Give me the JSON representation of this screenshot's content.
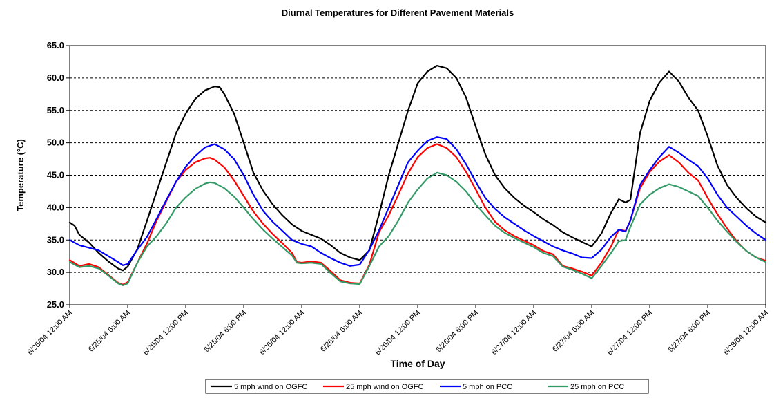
{
  "chart_data": {
    "type": "line",
    "title": "Diurnal Temperatures for Different Pavement Materials",
    "xlabel": "Time of Day",
    "ylabel": "Temperature (°C)",
    "ylim": [
      25,
      65
    ],
    "yticks": [
      "25.0",
      "30.0",
      "35.0",
      "40.0",
      "45.0",
      "50.0",
      "55.0",
      "60.0",
      "65.0"
    ],
    "xlim": [
      0,
      72
    ],
    "x_unit": "hours since 6/25/04 12:00 AM",
    "xticks": [
      {
        "x": 0,
        "label": "6/25/04 12:00 AM"
      },
      {
        "x": 6,
        "label": "6/25/04 6:00 AM"
      },
      {
        "x": 12,
        "label": "6/25/04 12:00 PM"
      },
      {
        "x": 18,
        "label": "6/25/04 6:00 PM"
      },
      {
        "x": 24,
        "label": "6/26/04 12:00 AM"
      },
      {
        "x": 30,
        "label": "6/26/04 6:00 AM"
      },
      {
        "x": 36,
        "label": "6/26/04 12:00 PM"
      },
      {
        "x": 42,
        "label": "6/26/04 6:00 PM"
      },
      {
        "x": 48,
        "label": "6/27/04 12:00 AM"
      },
      {
        "x": 54,
        "label": "6/27/04 6:00 AM"
      },
      {
        "x": 60,
        "label": "6/27/04 12:00 PM"
      },
      {
        "x": 66,
        "label": "6/27/04 6:00 PM"
      },
      {
        "x": 72,
        "label": "6/28/04 12:00 AM"
      }
    ],
    "grid": {
      "horizontal": true,
      "style": "dashed"
    },
    "legend_position": "bottom",
    "series": [
      {
        "name": "5 mph wind on OGFC",
        "color": "#000000",
        "points": [
          [
            0,
            37.7
          ],
          [
            0.5,
            37.2
          ],
          [
            1,
            35.8
          ],
          [
            2,
            34.6
          ],
          [
            3,
            33.0
          ],
          [
            4,
            31.7
          ],
          [
            5,
            30.6
          ],
          [
            5.5,
            30.3
          ],
          [
            6,
            30.9
          ],
          [
            7,
            33.6
          ],
          [
            8,
            38.0
          ],
          [
            9,
            42.5
          ],
          [
            10,
            47.0
          ],
          [
            11,
            51.5
          ],
          [
            12,
            54.5
          ],
          [
            13,
            56.8
          ],
          [
            14,
            58.1
          ],
          [
            15,
            58.7
          ],
          [
            15.5,
            58.6
          ],
          [
            16,
            57.5
          ],
          [
            17,
            54.5
          ],
          [
            18,
            50.0
          ],
          [
            19,
            45.4
          ],
          [
            20,
            42.6
          ],
          [
            21,
            40.5
          ],
          [
            22,
            38.8
          ],
          [
            23,
            37.4
          ],
          [
            24,
            36.4
          ],
          [
            25,
            35.8
          ],
          [
            26,
            35.2
          ],
          [
            27,
            34.2
          ],
          [
            28,
            33.0
          ],
          [
            29,
            32.3
          ],
          [
            30,
            31.9
          ],
          [
            31,
            33.4
          ],
          [
            32,
            39.0
          ],
          [
            33,
            45.0
          ],
          [
            34,
            50.0
          ],
          [
            35,
            55.0
          ],
          [
            36,
            59.2
          ],
          [
            37,
            61.0
          ],
          [
            38,
            61.9
          ],
          [
            39,
            61.5
          ],
          [
            40,
            60.0
          ],
          [
            41,
            57.0
          ],
          [
            42,
            52.5
          ],
          [
            43,
            48.2
          ],
          [
            44,
            45.0
          ],
          [
            45,
            43.0
          ],
          [
            46,
            41.5
          ],
          [
            47,
            40.3
          ],
          [
            48,
            39.3
          ],
          [
            49,
            38.2
          ],
          [
            50,
            37.3
          ],
          [
            51,
            36.2
          ],
          [
            52,
            35.4
          ],
          [
            53,
            34.7
          ],
          [
            54,
            34.0
          ],
          [
            55,
            36.0
          ],
          [
            56,
            39.2
          ],
          [
            56.8,
            41.3
          ],
          [
            57.5,
            40.8
          ],
          [
            58,
            41.2
          ],
          [
            59,
            51.5
          ],
          [
            60,
            56.5
          ],
          [
            61,
            59.3
          ],
          [
            62,
            61.0
          ],
          [
            63,
            59.5
          ],
          [
            64,
            57.0
          ],
          [
            65,
            55.0
          ],
          [
            66,
            51.0
          ],
          [
            67,
            46.5
          ],
          [
            68,
            43.5
          ],
          [
            69,
            41.5
          ],
          [
            70,
            39.9
          ],
          [
            71,
            38.6
          ],
          [
            72,
            37.7
          ]
        ]
      },
      {
        "name": "25 mph wind on OGFC",
        "color": "#ff0000",
        "points": [
          [
            0,
            31.9
          ],
          [
            1,
            31.0
          ],
          [
            2,
            31.3
          ],
          [
            3,
            30.8
          ],
          [
            4,
            29.6
          ],
          [
            5,
            28.4
          ],
          [
            5.5,
            28.1
          ],
          [
            6,
            28.5
          ],
          [
            7,
            31.5
          ],
          [
            8,
            34.5
          ],
          [
            9,
            38.0
          ],
          [
            10,
            41.0
          ],
          [
            11,
            44.0
          ],
          [
            12,
            45.8
          ],
          [
            13,
            47.0
          ],
          [
            14,
            47.6
          ],
          [
            14.5,
            47.7
          ],
          [
            15,
            47.4
          ],
          [
            16,
            46.2
          ],
          [
            17,
            44.2
          ],
          [
            18,
            41.8
          ],
          [
            19,
            39.4
          ],
          [
            20,
            37.5
          ],
          [
            21,
            35.9
          ],
          [
            22,
            34.5
          ],
          [
            23,
            33.0
          ],
          [
            23.5,
            31.6
          ],
          [
            24,
            31.5
          ],
          [
            25,
            31.7
          ],
          [
            26,
            31.5
          ],
          [
            27,
            30.2
          ],
          [
            28,
            28.8
          ],
          [
            29,
            28.4
          ],
          [
            30,
            28.3
          ],
          [
            31,
            31.2
          ],
          [
            32,
            36.2
          ],
          [
            33,
            38.8
          ],
          [
            34,
            42.0
          ],
          [
            35,
            45.3
          ],
          [
            36,
            47.8
          ],
          [
            37,
            49.2
          ],
          [
            38,
            49.8
          ],
          [
            39,
            49.2
          ],
          [
            40,
            47.8
          ],
          [
            41,
            45.5
          ],
          [
            42,
            42.8
          ],
          [
            43,
            40.0
          ],
          [
            44,
            37.8
          ],
          [
            45,
            36.5
          ],
          [
            46,
            35.6
          ],
          [
            47,
            34.9
          ],
          [
            48,
            34.2
          ],
          [
            49,
            33.3
          ],
          [
            50,
            32.8
          ],
          [
            51,
            31.0
          ],
          [
            52,
            30.6
          ],
          [
            53,
            30.1
          ],
          [
            54,
            29.5
          ],
          [
            55,
            31.5
          ],
          [
            56,
            34.0
          ],
          [
            56.8,
            36.6
          ],
          [
            57.5,
            36.4
          ],
          [
            58,
            38.0
          ],
          [
            59,
            43.0
          ],
          [
            60,
            45.5
          ],
          [
            61,
            47.1
          ],
          [
            62,
            48.1
          ],
          [
            63,
            47.0
          ],
          [
            64,
            45.4
          ],
          [
            65,
            44.2
          ],
          [
            66,
            41.5
          ],
          [
            67,
            39.0
          ],
          [
            68,
            36.8
          ],
          [
            69,
            34.8
          ],
          [
            70,
            33.3
          ],
          [
            71,
            32.3
          ],
          [
            72,
            31.8
          ]
        ]
      },
      {
        "name": "5 mph on PCC",
        "color": "#0000ff",
        "points": [
          [
            0,
            35.0
          ],
          [
            1,
            34.2
          ],
          [
            2,
            33.8
          ],
          [
            3,
            33.4
          ],
          [
            4,
            32.5
          ],
          [
            5,
            31.6
          ],
          [
            5.5,
            31.1
          ],
          [
            6,
            31.3
          ],
          [
            7,
            33.5
          ],
          [
            8,
            35.5
          ],
          [
            9,
            38.3
          ],
          [
            10,
            41.2
          ],
          [
            11,
            44.0
          ],
          [
            12,
            46.3
          ],
          [
            13,
            48.0
          ],
          [
            14,
            49.3
          ],
          [
            15,
            49.8
          ],
          [
            16,
            49.0
          ],
          [
            17,
            47.5
          ],
          [
            18,
            45.0
          ],
          [
            19,
            42.0
          ],
          [
            20,
            39.5
          ],
          [
            21,
            37.8
          ],
          [
            22,
            36.4
          ],
          [
            23,
            35.0
          ],
          [
            24,
            34.4
          ],
          [
            25,
            34.0
          ],
          [
            26,
            33.0
          ],
          [
            27,
            32.2
          ],
          [
            28,
            31.5
          ],
          [
            29,
            31.0
          ],
          [
            30,
            31.2
          ],
          [
            31,
            33.5
          ],
          [
            32,
            36.5
          ],
          [
            33,
            40.0
          ],
          [
            34,
            43.5
          ],
          [
            35,
            47.0
          ],
          [
            36,
            48.8
          ],
          [
            37,
            50.3
          ],
          [
            38,
            50.9
          ],
          [
            39,
            50.6
          ],
          [
            40,
            49.0
          ],
          [
            41,
            46.7
          ],
          [
            42,
            44.0
          ],
          [
            43,
            41.5
          ],
          [
            44,
            39.8
          ],
          [
            45,
            38.5
          ],
          [
            46,
            37.5
          ],
          [
            47,
            36.5
          ],
          [
            48,
            35.6
          ],
          [
            49,
            34.8
          ],
          [
            50,
            34.0
          ],
          [
            51,
            33.4
          ],
          [
            52,
            32.9
          ],
          [
            53,
            32.3
          ],
          [
            54,
            32.2
          ],
          [
            55,
            33.5
          ],
          [
            56,
            35.5
          ],
          [
            56.8,
            36.6
          ],
          [
            57.5,
            36.3
          ],
          [
            58,
            38.0
          ],
          [
            59,
            43.5
          ],
          [
            60,
            45.8
          ],
          [
            61,
            47.8
          ],
          [
            62,
            49.4
          ],
          [
            63,
            48.5
          ],
          [
            64,
            47.4
          ],
          [
            65,
            46.4
          ],
          [
            66,
            44.5
          ],
          [
            67,
            42.0
          ],
          [
            68,
            40.0
          ],
          [
            69,
            38.6
          ],
          [
            70,
            37.2
          ],
          [
            71,
            36.0
          ],
          [
            72,
            35.0
          ]
        ]
      },
      {
        "name": "25 mph on PCC",
        "color": "#339966",
        "points": [
          [
            0,
            31.6
          ],
          [
            1,
            30.8
          ],
          [
            2,
            31.0
          ],
          [
            3,
            30.6
          ],
          [
            4,
            29.5
          ],
          [
            5,
            28.3
          ],
          [
            5.5,
            28.0
          ],
          [
            6,
            28.3
          ],
          [
            7,
            31.5
          ],
          [
            8,
            34.0
          ],
          [
            9,
            35.6
          ],
          [
            10,
            37.6
          ],
          [
            11,
            40.0
          ],
          [
            12,
            41.6
          ],
          [
            13,
            42.9
          ],
          [
            14,
            43.7
          ],
          [
            14.5,
            43.9
          ],
          [
            15,
            43.8
          ],
          [
            16,
            43.0
          ],
          [
            17,
            41.7
          ],
          [
            18,
            40.0
          ],
          [
            19,
            38.2
          ],
          [
            20,
            36.6
          ],
          [
            21,
            35.2
          ],
          [
            22,
            33.9
          ],
          [
            23,
            32.6
          ],
          [
            23.5,
            31.5
          ],
          [
            24,
            31.4
          ],
          [
            25,
            31.5
          ],
          [
            26,
            31.3
          ],
          [
            27,
            29.9
          ],
          [
            28,
            28.6
          ],
          [
            29,
            28.3
          ],
          [
            30,
            28.2
          ],
          [
            31,
            31.0
          ],
          [
            32,
            34.0
          ],
          [
            33,
            35.6
          ],
          [
            34,
            38.0
          ],
          [
            35,
            40.8
          ],
          [
            36,
            42.8
          ],
          [
            37,
            44.5
          ],
          [
            38,
            45.4
          ],
          [
            39,
            45.0
          ],
          [
            40,
            44.0
          ],
          [
            41,
            42.5
          ],
          [
            42,
            40.5
          ],
          [
            43,
            38.8
          ],
          [
            44,
            37.2
          ],
          [
            45,
            36.1
          ],
          [
            46,
            35.3
          ],
          [
            47,
            34.6
          ],
          [
            48,
            33.9
          ],
          [
            49,
            33.0
          ],
          [
            50,
            32.5
          ],
          [
            51,
            30.9
          ],
          [
            52,
            30.4
          ],
          [
            53,
            29.8
          ],
          [
            54,
            29.1
          ],
          [
            55,
            31.0
          ],
          [
            56,
            33.0
          ],
          [
            56.8,
            34.8
          ],
          [
            57.5,
            35.0
          ],
          [
            58,
            37.0
          ],
          [
            59,
            40.5
          ],
          [
            60,
            42.0
          ],
          [
            61,
            43.0
          ],
          [
            62,
            43.6
          ],
          [
            63,
            43.2
          ],
          [
            64,
            42.5
          ],
          [
            65,
            41.8
          ],
          [
            66,
            40.0
          ],
          [
            67,
            38.0
          ],
          [
            68,
            36.3
          ],
          [
            69,
            34.7
          ],
          [
            70,
            33.3
          ],
          [
            71,
            32.3
          ],
          [
            72,
            31.6
          ]
        ]
      }
    ]
  }
}
